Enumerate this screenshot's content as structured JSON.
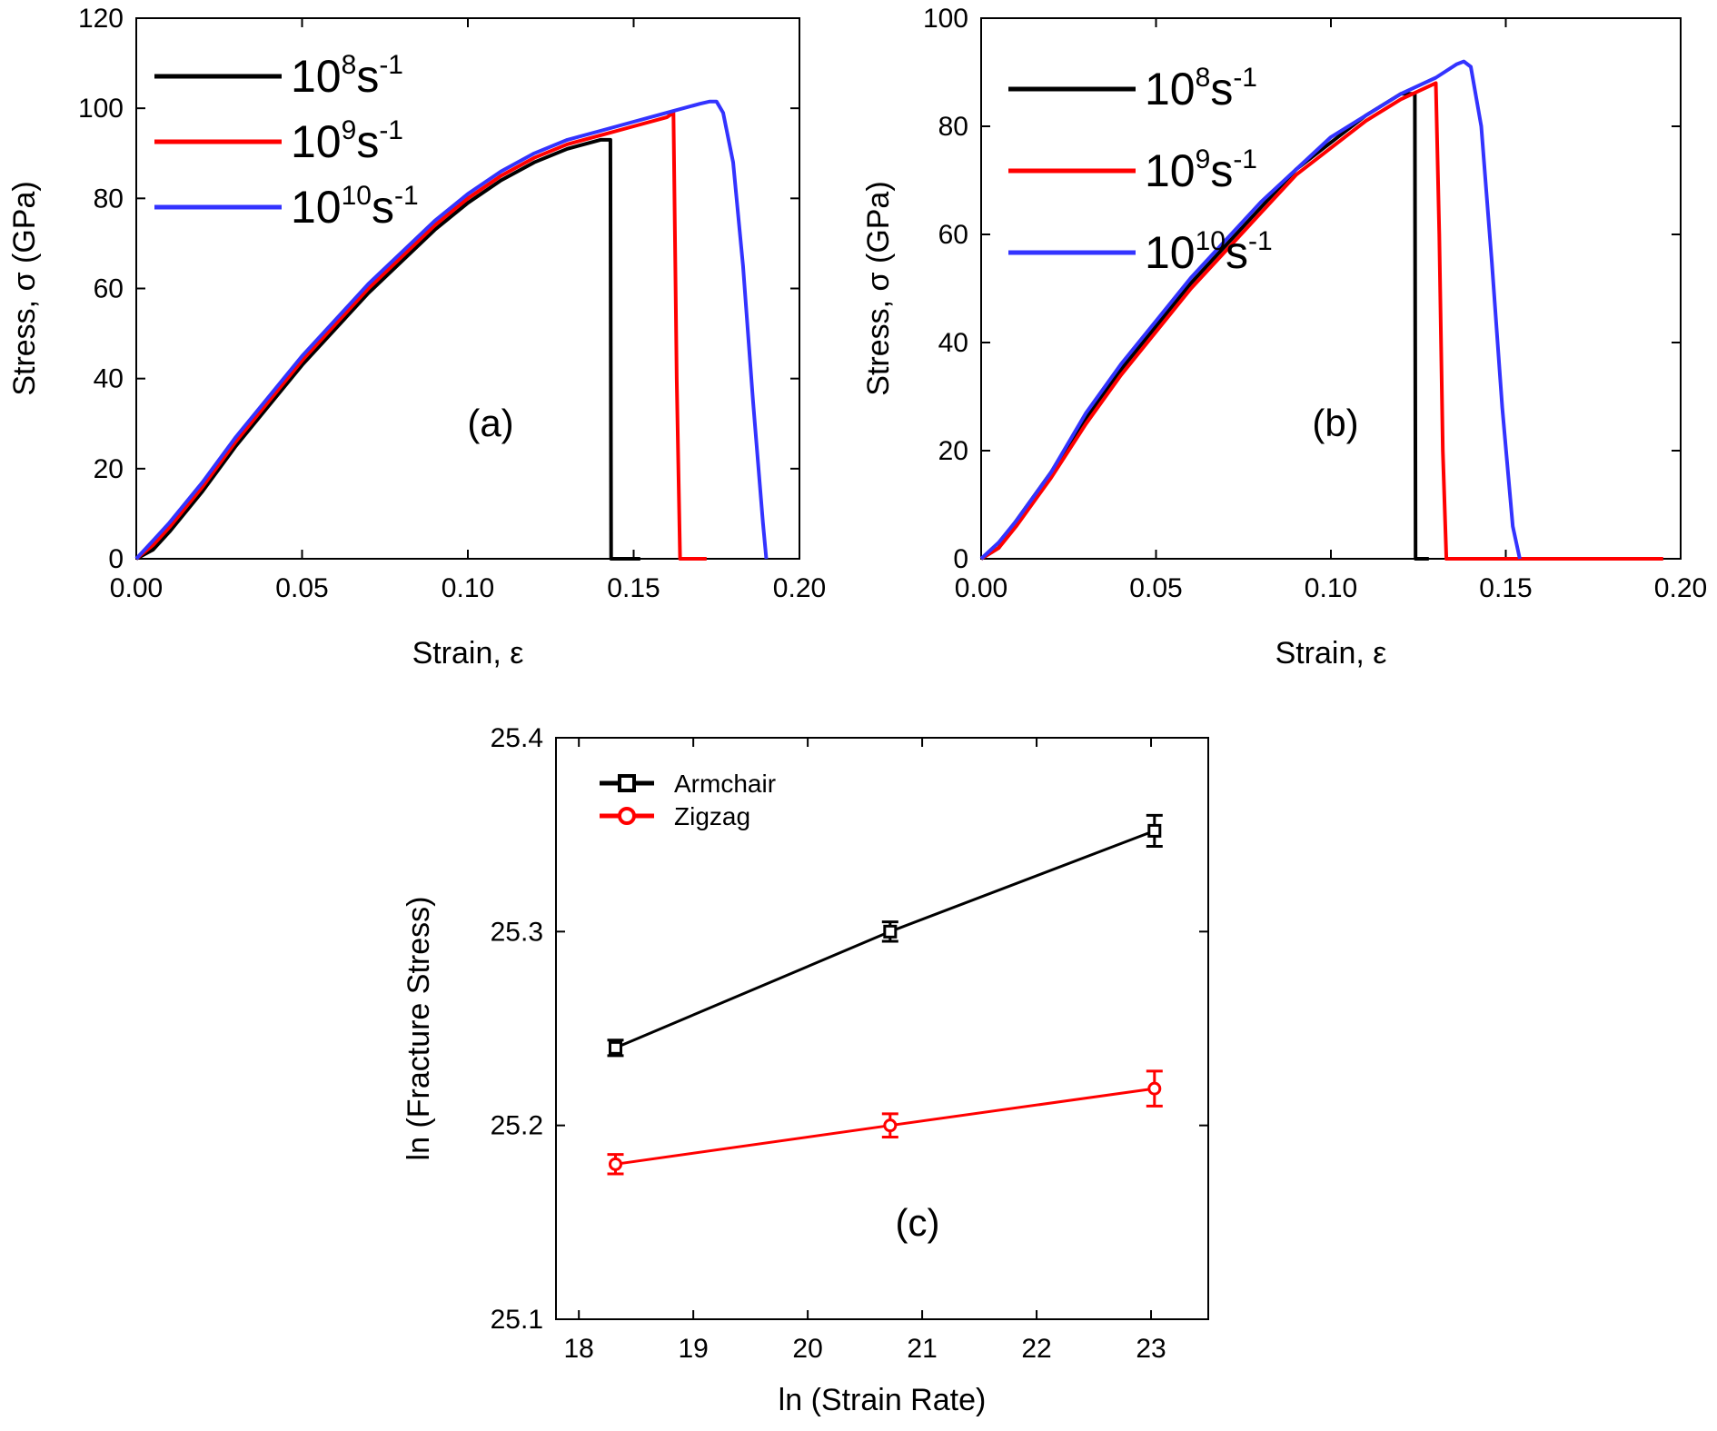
{
  "chart_data": [
    {
      "id": "a",
      "type": "line",
      "panel_label": "(a)",
      "xlabel": "Strain, ε",
      "ylabel": "Stress, σ (GPa)",
      "xlim": [
        0,
        0.2
      ],
      "ylim": [
        0,
        120
      ],
      "xticks": [
        0,
        0.05,
        0.1,
        0.15,
        0.2
      ],
      "yticks": [
        0,
        20,
        40,
        60,
        80,
        100,
        120
      ],
      "xtick_labels": [
        "0.00",
        "0.05",
        "0.10",
        "0.15",
        "0.20"
      ],
      "ytick_labels": [
        "0",
        "20",
        "40",
        "60",
        "80",
        "100",
        "120"
      ],
      "legend_position": "top-left",
      "series": [
        {
          "name_base": "10",
          "name_exp": "8",
          "name_unit": "s",
          "name_unit_exp": "-1",
          "color": "#000000",
          "x": [
            0,
            0.005,
            0.01,
            0.02,
            0.03,
            0.04,
            0.05,
            0.06,
            0.07,
            0.08,
            0.09,
            0.1,
            0.11,
            0.12,
            0.13,
            0.14,
            0.143,
            0.1432,
            0.144,
            0.152
          ],
          "y": [
            0,
            2,
            6,
            15,
            25,
            34,
            43,
            51,
            59,
            66,
            73,
            79,
            84,
            88,
            91,
            93,
            93,
            0,
            0,
            0
          ]
        },
        {
          "name_base": "10",
          "name_exp": "9",
          "name_unit": "s",
          "name_unit_exp": "-1",
          "color": "#ff0000",
          "x": [
            0,
            0.005,
            0.01,
            0.02,
            0.03,
            0.04,
            0.05,
            0.06,
            0.07,
            0.08,
            0.09,
            0.1,
            0.11,
            0.12,
            0.13,
            0.14,
            0.15,
            0.16,
            0.162,
            0.163,
            0.164,
            0.172
          ],
          "y": [
            0,
            3,
            7,
            16,
            26,
            35,
            44,
            52,
            60,
            67,
            74,
            80,
            85,
            89,
            92,
            94,
            96,
            98,
            99,
            40,
            0,
            0
          ]
        },
        {
          "name_base": "10",
          "name_exp": "10",
          "name_unit": "s",
          "name_unit_exp": "-1",
          "color": "#3333ff",
          "x": [
            0,
            0.005,
            0.01,
            0.02,
            0.03,
            0.04,
            0.05,
            0.06,
            0.07,
            0.08,
            0.09,
            0.1,
            0.11,
            0.12,
            0.13,
            0.14,
            0.15,
            0.16,
            0.17,
            0.173,
            0.175,
            0.177,
            0.18,
            0.183,
            0.186,
            0.189,
            0.19
          ],
          "y": [
            0,
            4,
            8,
            17,
            27,
            36,
            45,
            53,
            61,
            68,
            75,
            81,
            86,
            90,
            93,
            95,
            97,
            99,
            101,
            101.5,
            101.5,
            99,
            88,
            65,
            35,
            8,
            0
          ]
        }
      ]
    },
    {
      "id": "b",
      "type": "line",
      "panel_label": "(b)",
      "xlabel": "Strain, ε",
      "ylabel": "Stress, σ (GPa)",
      "xlim": [
        0,
        0.2
      ],
      "ylim": [
        0,
        100
      ],
      "xticks": [
        0,
        0.05,
        0.1,
        0.15,
        0.2
      ],
      "yticks": [
        0,
        20,
        40,
        60,
        80,
        100
      ],
      "xtick_labels": [
        "0.00",
        "0.05",
        "0.10",
        "0.15",
        "0.20"
      ],
      "ytick_labels": [
        "0",
        "20",
        "40",
        "60",
        "80",
        "100"
      ],
      "legend_position": "top-left",
      "series": [
        {
          "name_base": "10",
          "name_exp": "8",
          "name_unit": "s",
          "name_unit_exp": "-1",
          "color": "#000000",
          "x": [
            0,
            0.005,
            0.01,
            0.02,
            0.03,
            0.04,
            0.05,
            0.06,
            0.07,
            0.08,
            0.09,
            0.1,
            0.11,
            0.12,
            0.124,
            0.1242,
            0.125,
            0.128
          ],
          "y": [
            0,
            2,
            7,
            16,
            26,
            35,
            43,
            51,
            58,
            65,
            72,
            77,
            82,
            86,
            86,
            0,
            0,
            0
          ]
        },
        {
          "name_base": "10",
          "name_exp": "9",
          "name_unit": "s",
          "name_unit_exp": "-1",
          "color": "#ff0000",
          "x": [
            0,
            0.005,
            0.01,
            0.02,
            0.03,
            0.04,
            0.05,
            0.06,
            0.07,
            0.08,
            0.09,
            0.1,
            0.11,
            0.12,
            0.13,
            0.131,
            0.132,
            0.133,
            0.14,
            0.16,
            0.18,
            0.195
          ],
          "y": [
            0,
            2,
            6,
            15,
            25,
            34,
            42,
            50,
            57,
            64,
            71,
            76,
            81,
            85,
            88,
            60,
            20,
            0,
            0,
            0,
            0,
            0
          ]
        },
        {
          "name_base": "10",
          "name_exp": "10",
          "name_unit": "s",
          "name_unit_exp": "-1",
          "color": "#3333ff",
          "x": [
            0,
            0.005,
            0.01,
            0.02,
            0.03,
            0.04,
            0.05,
            0.06,
            0.07,
            0.08,
            0.09,
            0.1,
            0.11,
            0.12,
            0.13,
            0.136,
            0.138,
            0.14,
            0.143,
            0.146,
            0.149,
            0.152,
            0.154
          ],
          "y": [
            0,
            3,
            7,
            16,
            27,
            36,
            44,
            52,
            59,
            66,
            72,
            78,
            82,
            86,
            89,
            91.5,
            92,
            91,
            80,
            55,
            28,
            6,
            0
          ]
        }
      ]
    },
    {
      "id": "c",
      "type": "line",
      "panel_label": "(c)",
      "xlabel": "ln (Strain Rate)",
      "ylabel": "ln (Fracture Stress)",
      "xlim": [
        17.8,
        23.5
      ],
      "ylim": [
        25.1,
        25.4
      ],
      "xticks": [
        18,
        19,
        20,
        21,
        22,
        23
      ],
      "yticks": [
        25.1,
        25.2,
        25.3,
        25.4
      ],
      "xtick_labels": [
        "18",
        "19",
        "20",
        "21",
        "22",
        "23"
      ],
      "ytick_labels": [
        "25.1",
        "25.2",
        "25.3",
        "25.4"
      ],
      "legend_position": "top-left",
      "series": [
        {
          "name": "Armchair",
          "color": "#000000",
          "marker": "square",
          "x": [
            18.32,
            20.72,
            23.03
          ],
          "y": [
            25.24,
            25.3,
            25.352
          ],
          "err": [
            0.004,
            0.005,
            0.008
          ]
        },
        {
          "name": "Zigzag",
          "color": "#ff0000",
          "marker": "circle",
          "x": [
            18.32,
            20.72,
            23.03
          ],
          "y": [
            25.18,
            25.2,
            25.219
          ],
          "err": [
            0.005,
            0.006,
            0.009
          ]
        }
      ]
    }
  ]
}
